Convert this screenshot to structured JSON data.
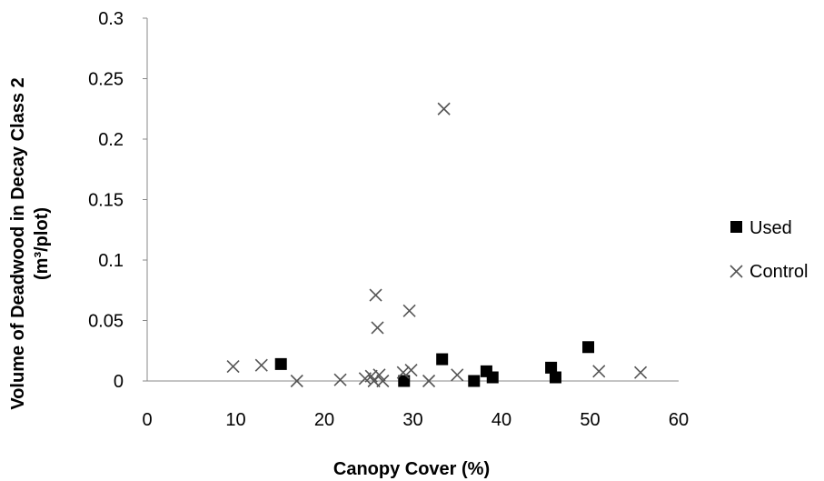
{
  "chart_data": {
    "type": "scatter",
    "title": "",
    "xlabel": "Canopy Cover (%)",
    "ylabel": "Volume of Deadwood in Decay Class 2",
    "ylabel_line2": "(m³/plot)",
    "xlim": [
      0,
      60
    ],
    "ylim": [
      0,
      0.3
    ],
    "x_ticks": [
      "0",
      "10",
      "20",
      "30",
      "40",
      "50",
      "60"
    ],
    "y_ticks": [
      "0",
      "0.05",
      "0.1",
      "0.15",
      "0.2",
      "0.25",
      "0.3"
    ],
    "grid": false,
    "legend_position": "right",
    "series": [
      {
        "name": "Used",
        "marker": "filled-square",
        "color": "#000000",
        "points": [
          [
            15.1,
            0.014
          ],
          [
            29.0,
            0.0
          ],
          [
            33.3,
            0.018
          ],
          [
            36.9,
            0.0
          ],
          [
            38.3,
            0.008
          ],
          [
            39.0,
            0.003
          ],
          [
            45.6,
            0.011
          ],
          [
            46.1,
            0.003
          ],
          [
            49.8,
            0.028
          ]
        ]
      },
      {
        "name": "Control",
        "marker": "x",
        "color": "#555555",
        "points": [
          [
            9.7,
            0.012
          ],
          [
            12.9,
            0.013
          ],
          [
            16.9,
            0.0
          ],
          [
            21.8,
            0.001
          ],
          [
            24.6,
            0.002
          ],
          [
            25.3,
            0.004
          ],
          [
            25.6,
            0.0
          ],
          [
            25.8,
            0.071
          ],
          [
            26.0,
            0.044
          ],
          [
            26.2,
            0.005
          ],
          [
            26.6,
            0.0
          ],
          [
            28.9,
            0.007
          ],
          [
            29.6,
            0.058
          ],
          [
            29.8,
            0.009
          ],
          [
            31.8,
            0.0
          ],
          [
            33.5,
            0.225
          ],
          [
            35.0,
            0.005
          ],
          [
            51.0,
            0.008
          ],
          [
            55.7,
            0.007
          ]
        ]
      }
    ]
  }
}
